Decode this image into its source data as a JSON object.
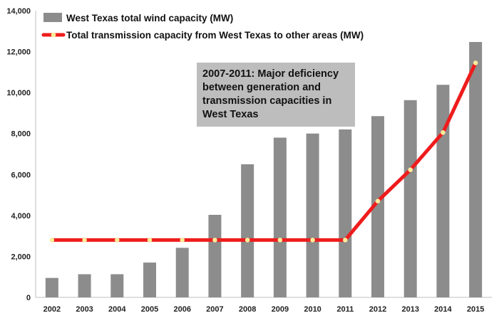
{
  "chart_data": {
    "type": "bar",
    "categories": [
      "2002",
      "2003",
      "2004",
      "2005",
      "2006",
      "2007",
      "2008",
      "2009",
      "2010",
      "2011",
      "2012",
      "2013",
      "2014",
      "2015"
    ],
    "series": [
      {
        "name": "West Texas total wind capacity  (MW)",
        "type": "bar",
        "color": "#8c8c8c",
        "values": [
          950,
          1130,
          1130,
          1700,
          2420,
          4030,
          6500,
          7800,
          8000,
          8200,
          8850,
          9630,
          10380,
          12470
        ]
      },
      {
        "name": "Total transmission capacity from West Texas to other areas (MW)",
        "type": "line",
        "color": "#ee1c1c",
        "marker_color": "#fbeb9a",
        "values": [
          2800,
          2800,
          2800,
          2800,
          2800,
          2800,
          2800,
          2800,
          2800,
          2800,
          4700,
          6230,
          8050,
          11450
        ]
      }
    ],
    "ylim": [
      0,
      14000
    ],
    "yticks": [
      0,
      2000,
      4000,
      6000,
      8000,
      10000,
      12000,
      14000
    ],
    "ytick_labels": [
      "0",
      "2,000",
      "4,000",
      "6,000",
      "8,000",
      "10,000",
      "12,000",
      "14,000"
    ],
    "grid": false,
    "legend": "top-left",
    "annotation": {
      "lines": [
        "2007-2011: Major deficiency",
        "between generation and",
        "transmission capacities  in",
        "West Texas"
      ],
      "background": "#bdbdbd"
    }
  }
}
